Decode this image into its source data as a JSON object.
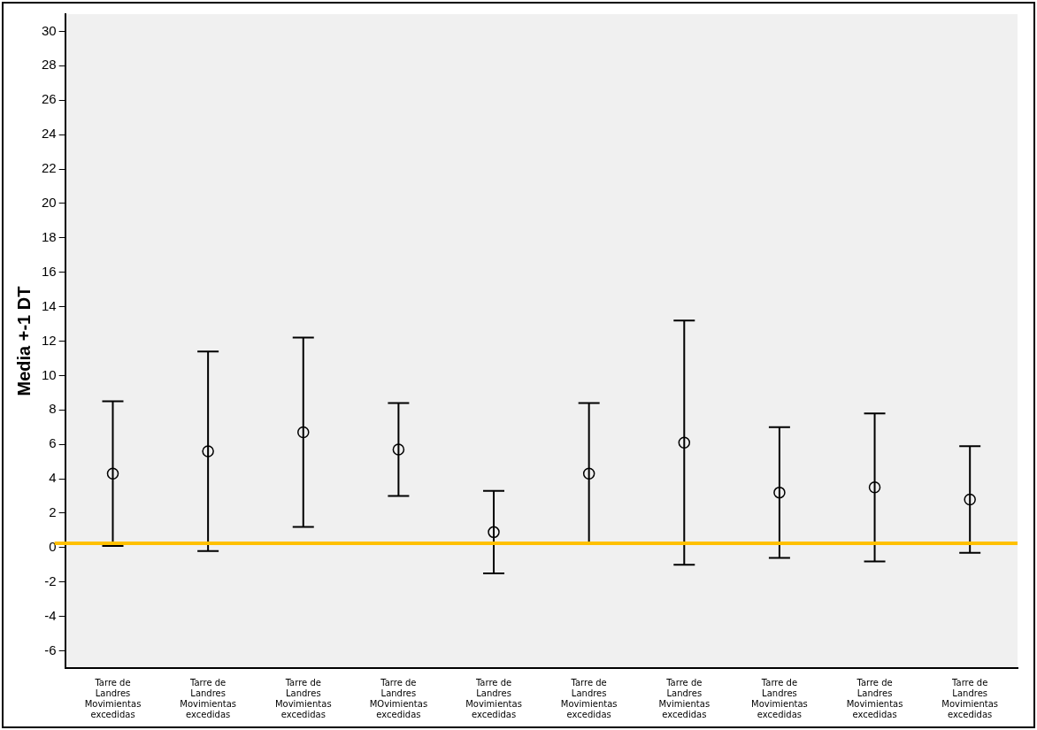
{
  "chart_data": {
    "type": "scatter",
    "ylabel": "Media +-1 DT",
    "categories": [
      "Tarre de Landres Movimientas excedidas",
      "Tarre de Landres Movimientas excedidas",
      "Tarre de Landres Movimientas excedidas",
      "Tarre de Landres MOvimientas excedidas",
      "Tarre de Landres Movimientas excedidas",
      "Tarre de Landres Movimientas excedidas",
      "Tarre de Landres Mvimientas excedidas",
      "Tarre de Landres Movimientas excedidas",
      "Tarre de Landres Movimientas excedidas",
      "Tarre de Landres Movimientas excedidas"
    ],
    "values": [
      4.3,
      5.6,
      6.7,
      5.7,
      0.9,
      4.3,
      6.1,
      3.2,
      3.5,
      2.8
    ],
    "errors": [
      4.2,
      5.8,
      5.5,
      2.7,
      2.4,
      4.1,
      7.1,
      3.8,
      4.3,
      3.1
    ],
    "color": "#000000",
    "marker": "circle",
    "ylim": [
      -7,
      31
    ],
    "yticks": [
      -6,
      -4,
      -2,
      0,
      2,
      4,
      6,
      8,
      10,
      12,
      14,
      16,
      18,
      20,
      22,
      24,
      26,
      28,
      30
    ],
    "ref_lines": [
      {
        "axis": "y",
        "value": 0.25,
        "color": "#ffc000"
      }
    ],
    "grid": false,
    "legend": false
  }
}
